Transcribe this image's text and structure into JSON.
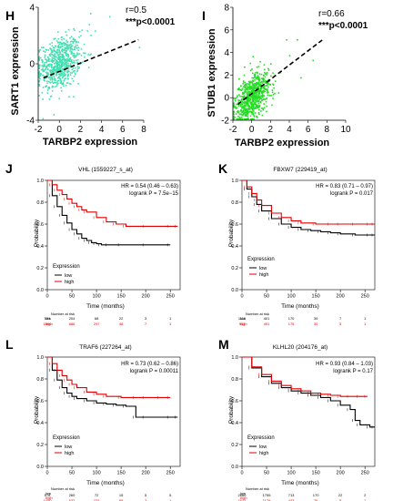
{
  "chart_data": [
    {
      "id": "H",
      "type": "scatter",
      "panel_label": "H",
      "xlabel": "TARBP2 expression",
      "ylabel": "SART1 expression",
      "xlim": [
        -2,
        8
      ],
      "ylim": [
        -4,
        4
      ],
      "xticks": [
        -2,
        0,
        2,
        4,
        6,
        8
      ],
      "yticks": [
        -4,
        0,
        4
      ],
      "annotation_r": "r=0.5",
      "annotation_p": "***p<0.0001",
      "point_color": "#40e0b0",
      "trend": {
        "x": [
          -1.5,
          7.5
        ],
        "y": [
          -1.0,
          1.7
        ]
      },
      "cloud": {
        "center_x": 0,
        "center_y": 0,
        "spread_x": 1.0,
        "spread_y": 0.9,
        "count": 700
      }
    },
    {
      "id": "I",
      "type": "scatter",
      "panel_label": "I",
      "xlabel": "TARBP2 expression",
      "ylabel": "STUB1 expression",
      "xlim": [
        -2,
        10
      ],
      "ylim": [
        -2,
        8
      ],
      "xticks": [
        -2,
        0,
        2,
        4,
        6,
        8,
        10
      ],
      "yticks": [
        -2,
        0,
        2,
        4,
        6,
        8
      ],
      "annotation_r": "r=0.66",
      "annotation_p": "***p<0.0001",
      "point_color": "#22dd22",
      "trend": {
        "x": [
          -1.5,
          7.5
        ],
        "y": [
          -0.6,
          5.1
        ]
      },
      "cloud": {
        "center_x": 0,
        "center_y": 0,
        "spread_x": 1.0,
        "spread_y": 1.0,
        "count": 700
      }
    },
    {
      "id": "J",
      "type": "line",
      "panel_label": "J",
      "title": "VHL (1559227_s_at)",
      "xlabel": "Time (months)",
      "ylabel": "Probability",
      "xlim": [
        0,
        270
      ],
      "ylim": [
        0,
        1
      ],
      "xticks": [
        0,
        50,
        100,
        150,
        200,
        250
      ],
      "yticks": [
        0.0,
        0.2,
        0.4,
        0.6,
        0.8,
        1.0
      ],
      "hr_text": "HR = 0.54 (0.46 – 0.63)",
      "logrank_text": "logrank P = 7.5e−15",
      "legend_title": "Expression",
      "series": [
        {
          "name": "low",
          "color": "#000000",
          "x": [
            0,
            10,
            20,
            30,
            40,
            50,
            60,
            70,
            80,
            90,
            100,
            110,
            125,
            150,
            200,
            250
          ],
          "y": [
            1.0,
            0.86,
            0.76,
            0.68,
            0.61,
            0.55,
            0.51,
            0.47,
            0.45,
            0.43,
            0.42,
            0.41,
            0.41,
            0.41,
            0.41,
            0.41
          ]
        },
        {
          "name": "high",
          "color": "#e00000",
          "x": [
            0,
            10,
            20,
            30,
            40,
            50,
            60,
            70,
            80,
            100,
            120,
            140,
            160,
            200,
            250,
            265
          ],
          "y": [
            1.0,
            0.96,
            0.91,
            0.87,
            0.83,
            0.79,
            0.76,
            0.73,
            0.71,
            0.66,
            0.62,
            0.6,
            0.58,
            0.58,
            0.58,
            0.58
          ]
        }
      ],
      "risk_header": "Number at risk",
      "risk_table": [
        {
          "name": "low",
          "values": [
            "531",
            "204",
            "68",
            "22",
            "3",
            "1"
          ]
        },
        {
          "name": "high",
          "values": [
            "1500",
            "688",
            "297",
            "48",
            "7",
            "1"
          ]
        }
      ]
    },
    {
      "id": "K",
      "type": "line",
      "panel_label": "K",
      "title": "FBXW7 (229419_at)",
      "xlabel": "Time (months)",
      "ylabel": "Probability",
      "xlim": [
        0,
        270
      ],
      "ylim": [
        0,
        1
      ],
      "xticks": [
        0,
        50,
        100,
        150,
        200,
        250
      ],
      "yticks": [
        0.0,
        0.2,
        0.4,
        0.6,
        0.8,
        1.0
      ],
      "hr_text": "HR = 0.83 (0.71 – 0.97)",
      "logrank_text": "logrank P = 0.017",
      "legend_title": "Expression",
      "series": [
        {
          "name": "low",
          "color": "#000000",
          "x": [
            0,
            10,
            20,
            30,
            40,
            60,
            80,
            100,
            120,
            140,
            160,
            180,
            200,
            230,
            260,
            270
          ],
          "y": [
            1.0,
            0.92,
            0.85,
            0.78,
            0.72,
            0.65,
            0.6,
            0.57,
            0.55,
            0.54,
            0.53,
            0.52,
            0.51,
            0.5,
            0.5,
            0.5
          ]
        },
        {
          "name": "high",
          "color": "#e00000",
          "x": [
            0,
            10,
            20,
            30,
            40,
            60,
            80,
            100,
            120,
            150,
            180,
            200,
            230,
            260,
            270
          ],
          "y": [
            1.0,
            0.94,
            0.88,
            0.82,
            0.77,
            0.7,
            0.66,
            0.63,
            0.61,
            0.6,
            0.6,
            0.6,
            0.6,
            0.6,
            0.6
          ]
        }
      ],
      "risk_header": "Number at risk",
      "risk_table": [
        {
          "name": "low",
          "values": [
            "1110",
            "401",
            "170",
            "39",
            "7",
            "1"
          ]
        },
        {
          "name": "high",
          "values": [
            "917",
            "491",
            "175",
            "30",
            "3",
            "1"
          ]
        }
      ]
    },
    {
      "id": "L",
      "type": "line",
      "panel_label": "L",
      "title": "TRAF6 (227264_at)",
      "xlabel": "Time (months)",
      "ylabel": "Probability",
      "xlim": [
        0,
        270
      ],
      "ylim": [
        0,
        1
      ],
      "xticks": [
        0,
        50,
        100,
        150,
        200,
        250
      ],
      "yticks": [
        0.0,
        0.2,
        0.4,
        0.6,
        0.8,
        1.0
      ],
      "hr_text": "HR = 0.73 (0.62 – 0.86)",
      "logrank_text": "logrank P = 0.00011",
      "legend_title": "Expression",
      "series": [
        {
          "name": "low",
          "color": "#000000",
          "x": [
            0,
            10,
            20,
            30,
            40,
            50,
            60,
            80,
            100,
            120,
            140,
            160,
            180,
            200,
            250,
            265
          ],
          "y": [
            1.0,
            0.88,
            0.79,
            0.72,
            0.67,
            0.64,
            0.62,
            0.6,
            0.58,
            0.57,
            0.56,
            0.55,
            0.45,
            0.45,
            0.45,
            0.45
          ]
        },
        {
          "name": "high",
          "color": "#e00000",
          "x": [
            0,
            10,
            20,
            30,
            40,
            50,
            60,
            80,
            100,
            120,
            150,
            180,
            200,
            230,
            250
          ],
          "y": [
            1.0,
            0.94,
            0.88,
            0.83,
            0.79,
            0.75,
            0.72,
            0.68,
            0.66,
            0.64,
            0.63,
            0.63,
            0.63,
            0.63,
            0.63
          ]
        }
      ],
      "risk_header": "Number at risk",
      "risk_table": [
        {
          "name": "low",
          "values": [
            "578",
            "260",
            "72",
            "15",
            "5",
            "5"
          ]
        },
        {
          "name": "high",
          "values": [
            "1450",
            "632",
            "274",
            "55",
            "7",
            "1"
          ]
        }
      ]
    },
    {
      "id": "M",
      "type": "line",
      "panel_label": "M",
      "title": "KLHL20 (204176_at)",
      "xlabel": "Time (months)",
      "ylabel": "Probability",
      "xlim": [
        0,
        270
      ],
      "ylim": [
        0,
        1
      ],
      "xticks": [
        0,
        50,
        100,
        150,
        200,
        250
      ],
      "yticks": [
        0.0,
        0.2,
        0.4,
        0.6,
        0.8,
        1.0
      ],
      "hr_text": "HR = 0.93 (0.84 – 1.03)",
      "logrank_text": "logrank P = 0.17",
      "legend_title": "Expression",
      "series": [
        {
          "name": "low",
          "color": "#000000",
          "x": [
            0,
            20,
            40,
            60,
            80,
            100,
            120,
            140,
            160,
            180,
            200,
            220,
            230,
            240,
            260,
            270
          ],
          "y": [
            1.0,
            0.9,
            0.82,
            0.76,
            0.72,
            0.69,
            0.67,
            0.65,
            0.63,
            0.6,
            0.56,
            0.52,
            0.42,
            0.38,
            0.36,
            0.36
          ]
        },
        {
          "name": "high",
          "color": "#e00000",
          "x": [
            0,
            20,
            40,
            60,
            80,
            100,
            120,
            140,
            160,
            180,
            200,
            220,
            240,
            255
          ],
          "y": [
            1.0,
            0.91,
            0.84,
            0.78,
            0.74,
            0.71,
            0.69,
            0.67,
            0.66,
            0.65,
            0.64,
            0.64,
            0.64,
            0.64
          ]
        }
      ],
      "risk_header": "Number at risk",
      "risk_table": [
        {
          "name": "low",
          "values": [
            "2666",
            "1755",
            "713",
            "170",
            "22",
            "2"
          ]
        },
        {
          "name": "high",
          "values": [
            "1011",
            "1126",
            "423",
            "76",
            "5",
            "1"
          ]
        }
      ]
    }
  ]
}
